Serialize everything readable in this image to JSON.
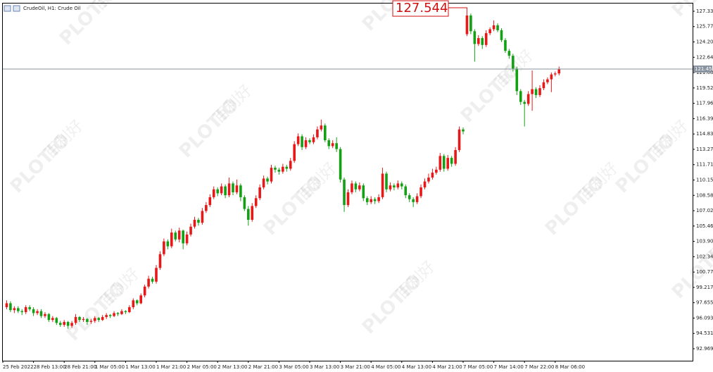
{
  "chart_data": {
    "type": "candlestick",
    "title": "CrudeOil, H1:  Crude Oil",
    "watermark_brand": "PLOTIO",
    "watermark_cn": "百利好",
    "up_color": "#e81818",
    "down_color": "#14a014",
    "ylim": [
      91.75,
      128.12
    ],
    "yticks": [
      127.333,
      125.771,
      124.209,
      122.647,
      121.085,
      119.523,
      117.961,
      116.399,
      114.837,
      113.275,
      111.713,
      110.151,
      108.589,
      107.027,
      105.465,
      103.903,
      102.341,
      100.779,
      99.217,
      97.655,
      96.093,
      94.531,
      92.969
    ],
    "xticks": [
      {
        "value": 0,
        "label": "25 Feb 2022"
      },
      {
        "value": 8,
        "label": "28 Feb 13:00"
      },
      {
        "value": 16,
        "label": "28 Feb 21:00"
      },
      {
        "value": 24,
        "label": "1 Mar 05:00"
      },
      {
        "value": 32,
        "label": "1 Mar 13:00"
      },
      {
        "value": 40,
        "label": "1 Mar 21:00"
      },
      {
        "value": 48,
        "label": "2 Mar 05:00"
      },
      {
        "value": 56,
        "label": "2 Mar 13:00"
      },
      {
        "value": 64,
        "label": "2 Mar 21:00"
      },
      {
        "value": 72,
        "label": "3 Mar 05:00"
      },
      {
        "value": 80,
        "label": "3 Mar 13:00"
      },
      {
        "value": 88,
        "label": "3 Mar 21:00"
      },
      {
        "value": 96,
        "label": "4 Mar 05:00"
      },
      {
        "value": 104,
        "label": "4 Mar 13:00"
      },
      {
        "value": 112,
        "label": "4 Mar 21:00"
      },
      {
        "value": 120,
        "label": "7 Mar 05:00"
      },
      {
        "value": 128,
        "label": "7 Mar 14:00"
      },
      {
        "value": 136,
        "label": "7 Mar 22:00"
      },
      {
        "value": 144,
        "label": "8 Mar 06:00"
      }
    ],
    "high_marker": 127.544,
    "current_price": 121.45,
    "ohlc": [
      [
        97.2,
        97.9,
        97.0,
        97.6
      ],
      [
        97.6,
        97.8,
        96.7,
        96.9
      ],
      [
        96.9,
        97.3,
        96.6,
        97.1
      ],
      [
        97.1,
        97.3,
        96.6,
        96.8
      ],
      [
        96.8,
        97.0,
        96.4,
        96.7
      ],
      [
        96.7,
        97.4,
        96.5,
        97.2
      ],
      [
        97.2,
        97.4,
        96.8,
        97.0
      ],
      [
        97.0,
        97.2,
        96.3,
        96.6
      ],
      [
        96.6,
        97.0,
        96.4,
        96.8
      ],
      [
        96.8,
        97.0,
        96.1,
        96.3
      ],
      [
        96.3,
        96.7,
        96.1,
        96.5
      ],
      [
        96.5,
        96.6,
        95.7,
        95.9
      ],
      [
        95.9,
        96.3,
        95.7,
        96.1
      ],
      [
        96.1,
        96.2,
        95.4,
        95.6
      ],
      [
        95.6,
        95.8,
        95.2,
        95.4
      ],
      [
        95.4,
        95.9,
        95.2,
        95.7
      ],
      [
        95.7,
        95.8,
        95.0,
        95.3
      ],
      [
        95.3,
        95.8,
        95.1,
        95.6
      ],
      [
        95.6,
        96.5,
        95.4,
        96.2
      ],
      [
        96.2,
        96.3,
        95.7,
        95.9
      ],
      [
        95.9,
        96.2,
        95.7,
        96.0
      ],
      [
        96.0,
        96.1,
        95.4,
        95.7
      ],
      [
        95.7,
        96.0,
        95.5,
        95.8
      ],
      [
        95.8,
        96.3,
        95.6,
        96.1
      ],
      [
        96.1,
        96.2,
        95.7,
        95.9
      ],
      [
        95.9,
        96.4,
        95.8,
        96.2
      ],
      [
        96.2,
        96.6,
        96.0,
        96.4
      ],
      [
        96.4,
        96.5,
        96.1,
        96.3
      ],
      [
        96.3,
        96.8,
        96.2,
        96.6
      ],
      [
        96.6,
        96.7,
        96.3,
        96.5
      ],
      [
        96.5,
        97.0,
        96.4,
        96.8
      ],
      [
        96.8,
        96.9,
        96.5,
        96.7
      ],
      [
        96.7,
        97.4,
        96.6,
        97.2
      ],
      [
        97.2,
        98.1,
        97.0,
        97.9
      ],
      [
        97.9,
        98.0,
        97.4,
        97.6
      ],
      [
        97.6,
        98.6,
        97.5,
        98.4
      ],
      [
        98.4,
        99.5,
        98.2,
        99.3
      ],
      [
        99.3,
        100.4,
        99.1,
        100.1
      ],
      [
        100.1,
        100.3,
        99.6,
        99.8
      ],
      [
        99.8,
        101.5,
        99.6,
        101.2
      ],
      [
        101.2,
        102.9,
        101.0,
        102.6
      ],
      [
        102.6,
        104.2,
        102.4,
        103.9
      ],
      [
        103.9,
        104.1,
        103.1,
        103.4
      ],
      [
        103.4,
        105.2,
        103.2,
        104.8
      ],
      [
        104.8,
        105.0,
        103.9,
        104.1
      ],
      [
        104.1,
        105.3,
        103.8,
        105.0
      ],
      [
        105.0,
        105.1,
        103.1,
        103.7
      ],
      [
        103.7,
        104.9,
        103.5,
        104.6
      ],
      [
        104.6,
        105.7,
        104.4,
        105.4
      ],
      [
        105.4,
        106.4,
        105.2,
        106.1
      ],
      [
        106.1,
        106.3,
        105.5,
        105.8
      ],
      [
        105.8,
        107.3,
        105.6,
        107.0
      ],
      [
        107.0,
        107.9,
        106.8,
        107.6
      ],
      [
        107.6,
        108.7,
        107.4,
        108.4
      ],
      [
        108.4,
        109.5,
        108.2,
        109.2
      ],
      [
        109.2,
        109.4,
        108.5,
        108.8
      ],
      [
        108.8,
        109.8,
        108.6,
        109.5
      ],
      [
        109.5,
        109.7,
        108.3,
        108.6
      ],
      [
        108.6,
        110.4,
        108.4,
        109.8
      ],
      [
        109.8,
        110.0,
        108.6,
        108.9
      ],
      [
        108.9,
        110.2,
        108.7,
        109.6
      ],
      [
        109.6,
        109.8,
        108.0,
        108.4
      ],
      [
        108.4,
        108.6,
        107.0,
        107.2
      ],
      [
        107.2,
        107.5,
        105.5,
        106.1
      ],
      [
        106.1,
        107.8,
        105.9,
        107.5
      ],
      [
        107.5,
        108.6,
        107.3,
        108.3
      ],
      [
        108.3,
        109.7,
        108.1,
        109.4
      ],
      [
        109.4,
        110.6,
        109.2,
        110.3
      ],
      [
        110.3,
        110.5,
        109.7,
        110.0
      ],
      [
        110.0,
        111.7,
        109.8,
        111.4
      ],
      [
        111.4,
        111.6,
        110.9,
        111.2
      ],
      [
        111.2,
        111.4,
        110.7,
        111.0
      ],
      [
        111.0,
        111.8,
        110.8,
        111.5
      ],
      [
        111.5,
        111.7,
        111.0,
        111.3
      ],
      [
        111.3,
        112.4,
        111.1,
        112.1
      ],
      [
        112.1,
        114.1,
        111.9,
        113.8
      ],
      [
        113.8,
        114.9,
        113.6,
        114.6
      ],
      [
        114.6,
        114.8,
        113.2,
        113.5
      ],
      [
        113.5,
        114.5,
        113.3,
        114.2
      ],
      [
        114.2,
        114.4,
        113.8,
        114.0
      ],
      [
        114.0,
        114.8,
        113.8,
        114.5
      ],
      [
        114.5,
        115.6,
        114.3,
        115.3
      ],
      [
        115.3,
        116.3,
        115.1,
        115.7
      ],
      [
        115.7,
        115.9,
        114.0,
        114.2
      ],
      [
        114.2,
        114.4,
        113.3,
        113.6
      ],
      [
        113.6,
        114.2,
        113.4,
        113.9
      ],
      [
        113.9,
        114.5,
        113.0,
        113.3
      ],
      [
        113.3,
        113.5,
        109.9,
        110.2
      ],
      [
        110.2,
        110.4,
        106.9,
        107.6
      ],
      [
        107.6,
        109.2,
        107.4,
        108.9
      ],
      [
        108.9,
        110.1,
        108.7,
        109.8
      ],
      [
        109.8,
        110.0,
        108.9,
        109.2
      ],
      [
        109.2,
        109.9,
        109.0,
        109.6
      ],
      [
        109.6,
        109.8,
        108.0,
        108.3
      ],
      [
        108.3,
        108.5,
        107.6,
        107.9
      ],
      [
        107.9,
        108.5,
        107.7,
        108.2
      ],
      [
        108.2,
        108.4,
        107.7,
        108.0
      ],
      [
        108.0,
        108.7,
        107.8,
        108.4
      ],
      [
        108.4,
        111.4,
        108.2,
        110.8
      ],
      [
        110.8,
        111.0,
        108.9,
        109.2
      ],
      [
        109.2,
        109.9,
        109.0,
        109.6
      ],
      [
        109.6,
        109.8,
        109.1,
        109.4
      ],
      [
        109.4,
        110.1,
        109.2,
        109.8
      ],
      [
        109.8,
        110.0,
        109.2,
        109.5
      ],
      [
        109.5,
        109.7,
        108.3,
        108.6
      ],
      [
        108.6,
        108.8,
        107.9,
        108.2
      ],
      [
        108.2,
        108.4,
        107.4,
        107.9
      ],
      [
        107.9,
        108.8,
        107.7,
        108.5
      ],
      [
        108.5,
        109.7,
        108.3,
        109.4
      ],
      [
        109.4,
        110.3,
        109.2,
        110.0
      ],
      [
        110.0,
        110.8,
        109.8,
        110.4
      ],
      [
        110.4,
        111.3,
        110.2,
        110.9
      ],
      [
        110.9,
        111.5,
        110.7,
        111.2
      ],
      [
        111.2,
        112.9,
        111.0,
        112.6
      ],
      [
        112.6,
        112.8,
        111.0,
        111.3
      ],
      [
        111.3,
        112.7,
        111.1,
        112.4
      ],
      [
        112.4,
        112.6,
        111.5,
        111.8
      ],
      [
        111.8,
        113.5,
        111.6,
        113.2
      ],
      [
        113.2,
        115.6,
        113.0,
        115.3
      ],
      [
        115.3,
        115.5,
        114.8,
        115.1
      ],
      [
        125.0,
        127.544,
        124.8,
        126.9
      ],
      [
        126.9,
        127.1,
        125.0,
        125.3
      ],
      [
        125.3,
        125.5,
        122.2,
        124.0
      ],
      [
        124.0,
        124.9,
        123.8,
        124.6
      ],
      [
        124.6,
        124.8,
        123.5,
        123.9
      ],
      [
        123.9,
        125.4,
        123.7,
        125.1
      ],
      [
        125.1,
        125.7,
        124.9,
        125.5
      ],
      [
        125.5,
        126.4,
        125.3,
        125.9
      ],
      [
        125.9,
        126.1,
        125.2,
        125.4
      ],
      [
        125.4,
        125.6,
        124.2,
        124.4
      ],
      [
        124.4,
        124.6,
        123.1,
        123.3
      ],
      [
        123.3,
        123.5,
        122.5,
        122.8
      ],
      [
        122.8,
        123.0,
        121.2,
        121.5
      ],
      [
        121.5,
        121.7,
        118.8,
        119.2
      ],
      [
        119.2,
        119.4,
        117.8,
        118.1
      ],
      [
        118.1,
        118.3,
        115.6,
        117.9
      ],
      [
        117.9,
        119.2,
        117.7,
        118.9
      ],
      [
        118.9,
        121.3,
        117.2,
        119.4
      ],
      [
        119.4,
        119.6,
        118.5,
        118.8
      ],
      [
        118.8,
        119.8,
        118.6,
        119.5
      ],
      [
        119.5,
        120.4,
        119.3,
        120.1
      ],
      [
        120.1,
        120.6,
        119.9,
        120.4
      ],
      [
        120.4,
        121.1,
        119.1,
        120.9
      ],
      [
        120.9,
        121.2,
        120.7,
        121.0
      ],
      [
        121.0,
        121.7,
        120.8,
        121.45
      ]
    ]
  }
}
